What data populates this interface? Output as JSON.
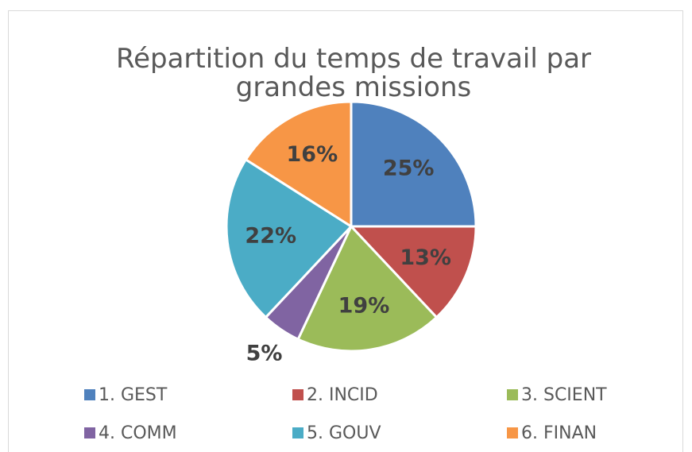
{
  "chart_data": {
    "type": "pie",
    "title": "Répartition du temps de travail par grandes missions",
    "categories": [
      "1. GEST",
      "2. INCID",
      "3. SCIENT",
      "4. COMM",
      "5. GOUV",
      "6. FINAN"
    ],
    "values": [
      25,
      13,
      19,
      5,
      22,
      16
    ],
    "value_labels": [
      "25%",
      "13%",
      "19%",
      "5%",
      "22%",
      "16%"
    ],
    "colors": [
      "#4f81bd",
      "#c0504d",
      "#9bbb59",
      "#8064a2",
      "#4bacc6",
      "#f79646"
    ],
    "legend": "bottom"
  }
}
